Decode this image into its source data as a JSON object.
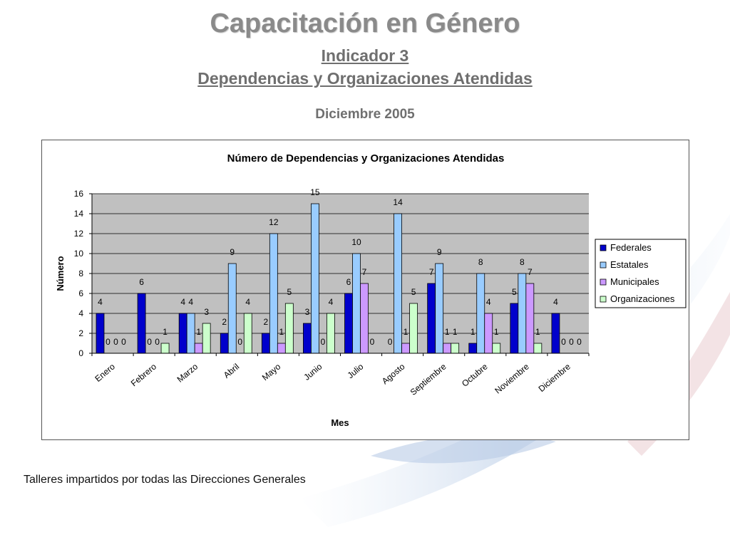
{
  "slide": {
    "title": "Capacitación en Género",
    "indicator": "Indicador 3",
    "subtitle": "Dependencias y Organizaciones Atendidas",
    "date": "Diciembre 2005",
    "caption": "Talleres impartidos por todas las Direcciones Generales"
  },
  "colors": {
    "federales": "#0000cc",
    "estatales": "#99ccff",
    "municipales": "#cc99ff",
    "organizaciones": "#ccffcc",
    "plot_background": "#c0c0c0"
  },
  "chart_data": {
    "type": "bar",
    "title": "Número de Dependencias y Organizaciones Atendidas",
    "xlabel": "Mes",
    "ylabel": "Número",
    "ylim": [
      0,
      16
    ],
    "yticks": [
      0,
      2,
      4,
      6,
      8,
      10,
      12,
      14,
      16
    ],
    "grid": true,
    "legend_position": "right",
    "categories": [
      "Enero",
      "Febrero",
      "Marzo",
      "Abril",
      "Mayo",
      "Junio",
      "Julio",
      "Agosto",
      "Septiembre",
      "Octubre",
      "Noviembre",
      "Diciembre"
    ],
    "series": [
      {
        "name": "Federales",
        "values": [
          4,
          6,
          4,
          2,
          2,
          3,
          6,
          0,
          7,
          1,
          5,
          4
        ]
      },
      {
        "name": "Estatales",
        "values": [
          0,
          0,
          4,
          9,
          12,
          15,
          10,
          14,
          9,
          8,
          8,
          0
        ]
      },
      {
        "name": "Municipales",
        "values": [
          0,
          0,
          1,
          0,
          1,
          0,
          7,
          1,
          1,
          4,
          7,
          0
        ]
      },
      {
        "name": "Organizaciones",
        "values": [
          0,
          1,
          3,
          4,
          5,
          4,
          0,
          5,
          1,
          1,
          1,
          0
        ]
      }
    ]
  }
}
